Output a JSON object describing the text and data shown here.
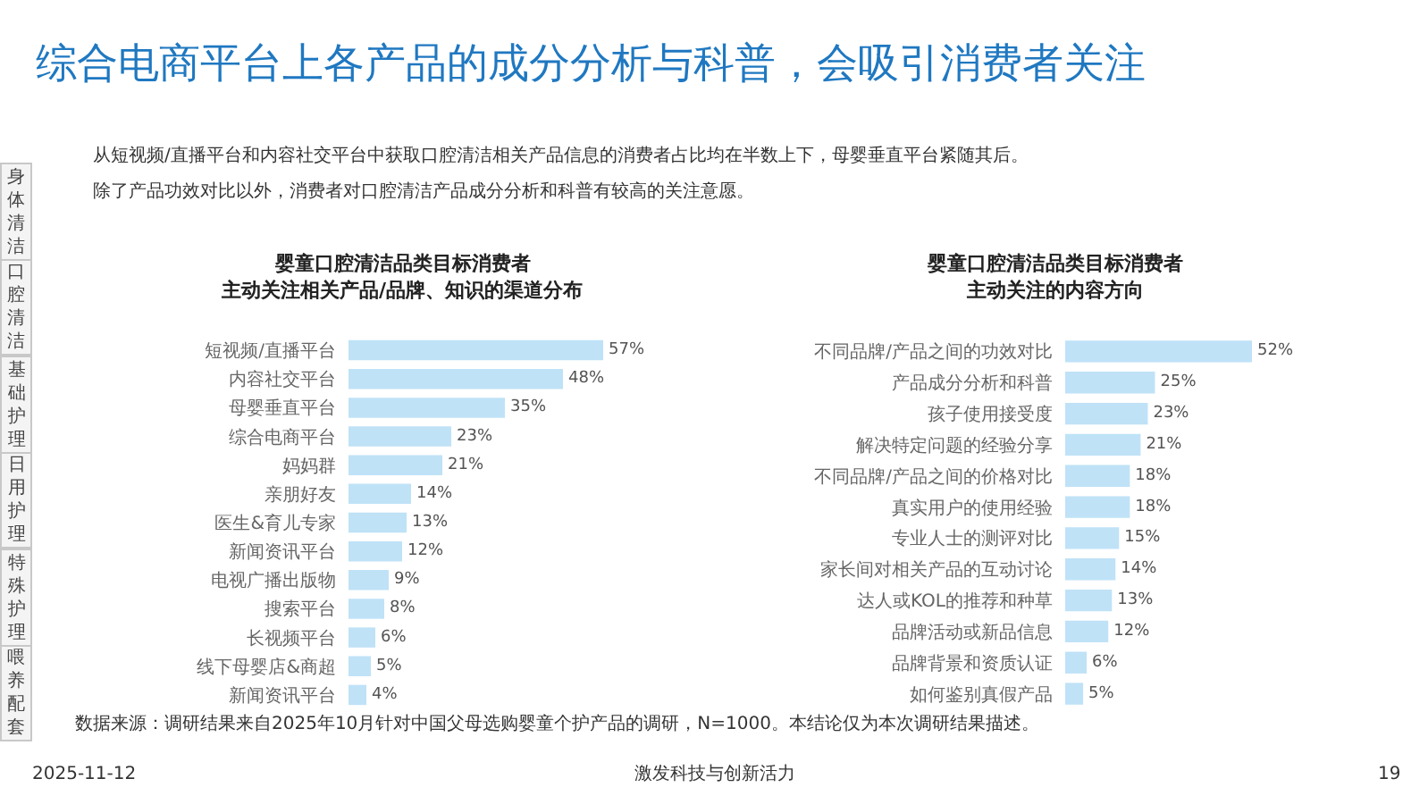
{
  "chart_data": [
    {
      "type": "other",
      "title": "综合电商平台上各产品的成分分析与科普，会吸引消费者关注",
      "annotations": [
        "从短视频/直播平台和内容社交平台中获取口腔清洁相关产品信息的消费者占比均在半数上下，母婴垂直平台紧随其后。",
        "除了产品功效对比以外，消费者对口腔清洁产品成分分析和科普有较高的关注意愿。"
      ]
    },
    {
      "type": "other",
      "annotations": [
        "身体清洁",
        "口腔清洁",
        "基础护理",
        "日用护理",
        "特殊护理",
        "喂养配套"
      ]
    },
    {
      "type": "bar",
      "orientation": "horizontal",
      "title": "婴童口腔清洁品类目标消费者",
      "subtitle": "主动关注相关产品/品牌、知识的渠道分布",
      "categories": [
        "短视频/直播平台",
        "内容社交平台",
        "母婴垂直平台",
        "综合电商平台",
        "妈妈群",
        "亲朋好友",
        "医生&育儿专家",
        "新闻资讯平台",
        "电视广播出版物",
        "搜索平台",
        "长视频平台",
        "线下母婴店&商超",
        "新闻资讯平台"
      ],
      "values": [
        57,
        48,
        35,
        23,
        21,
        14,
        13,
        12,
        9,
        8,
        6,
        5,
        4
      ],
      "value_labels": [
        "57%",
        "48%",
        "35%",
        "23%",
        "21%",
        "14%",
        "13%",
        "12%",
        "9%",
        "8%",
        "6%",
        "5%",
        "4%"
      ],
      "color": "#bfe2f7",
      "tick_labels": "y"
    },
    {
      "type": "bar",
      "orientation": "horizontal",
      "title": "婴童口腔清洁品类目标消费者",
      "subtitle": "主动关注的内容方向",
      "categories": [
        "不同品牌/产品之间的功效对比",
        "产品成分分析和科普",
        "孩子使用接受度",
        "解决特定问题的经验分享",
        "不同品牌/产品之间的价格对比",
        "真实用户的使用经验",
        "专业人士的测评对比",
        "家长间对相关产品的互动讨论",
        "达人或KOL的推荐和种草",
        "品牌活动或新品信息",
        "品牌背景和资质认证",
        "如何鉴别真假产品"
      ],
      "values": [
        52,
        25,
        23,
        21,
        18,
        18,
        15,
        14,
        13,
        12,
        6,
        5
      ],
      "value_labels": [
        "52%",
        "25%",
        "23%",
        "21%",
        "18%",
        "18%",
        "15%",
        "14%",
        "13%",
        "12%",
        "6%",
        "5%"
      ],
      "color": "#bfe2f7",
      "tick_labels": "y"
    },
    {
      "type": "other",
      "annotations": [
        "数据来源：调研结果来自2025年10月针对中国父母选购婴童个护产品的调研，N=1000。本结论仅为本次调研结果描述。",
        "2025-11-12",
        "激发科技与创新活力",
        "19"
      ]
    }
  ]
}
